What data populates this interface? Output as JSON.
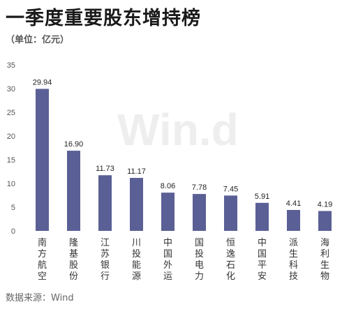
{
  "chart_data": {
    "type": "bar",
    "title": "一季度重要股东增持榜",
    "subtitle": "（单位：亿元）",
    "categories": [
      "南方航空",
      "隆基股份",
      "江苏银行",
      "川投能源",
      "中国外运",
      "国投电力",
      "恒逸石化",
      "中国平安",
      "派生科技",
      "海利生物"
    ],
    "values": [
      29.94,
      16.9,
      11.73,
      11.17,
      8.06,
      7.78,
      7.45,
      5.91,
      4.41,
      4.19
    ],
    "value_labels": [
      "29.94",
      "16.90",
      "11.73",
      "11.17",
      "8.06",
      "7.78",
      "7.45",
      "5.91",
      "4.41",
      "4.19"
    ],
    "yticks": [
      "0",
      "5",
      "10",
      "15",
      "20",
      "25",
      "30",
      "35"
    ],
    "ylim": [
      0,
      35
    ],
    "xlabel": "",
    "ylabel": "",
    "grid": false,
    "bar_color": "#5a5f95",
    "watermark": "Win.d"
  },
  "source": "数据来源：Wind"
}
